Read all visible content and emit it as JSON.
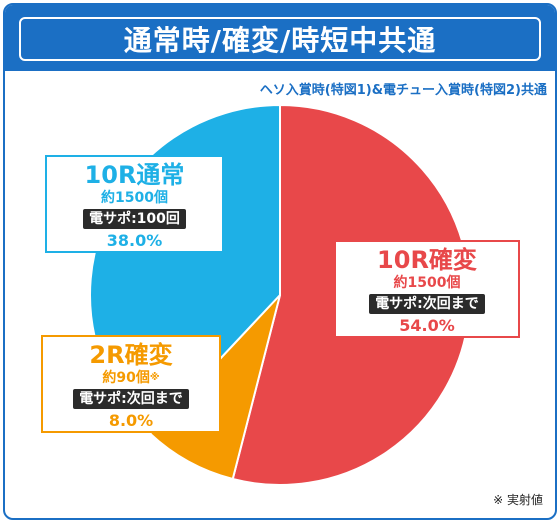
{
  "title": "通常時/確変/時短中共通",
  "subtitle": "ヘソ入賞時(特図1)&電チュー入賞時(特図2)共通",
  "note": "※ 実射値",
  "chart_data": {
    "type": "pie",
    "slices": [
      {
        "name": "10R確変",
        "count": "約1500個",
        "count_mark": "",
        "sapo": "電サポ:次回まで",
        "value": 54.0,
        "pct_label": "54.0%",
        "color": "#e8484a"
      },
      {
        "name": "2R確変",
        "count": "約90個",
        "count_mark": "※",
        "sapo": "電サポ:次回まで",
        "value": 8.0,
        "pct_label": "8.0%",
        "color": "#f59a00"
      },
      {
        "name": "10R通常",
        "count": "約1500個",
        "count_mark": "",
        "sapo": "電サポ:100回",
        "value": 38.0,
        "pct_label": "38.0%",
        "color": "#1eb0e6"
      }
    ]
  }
}
